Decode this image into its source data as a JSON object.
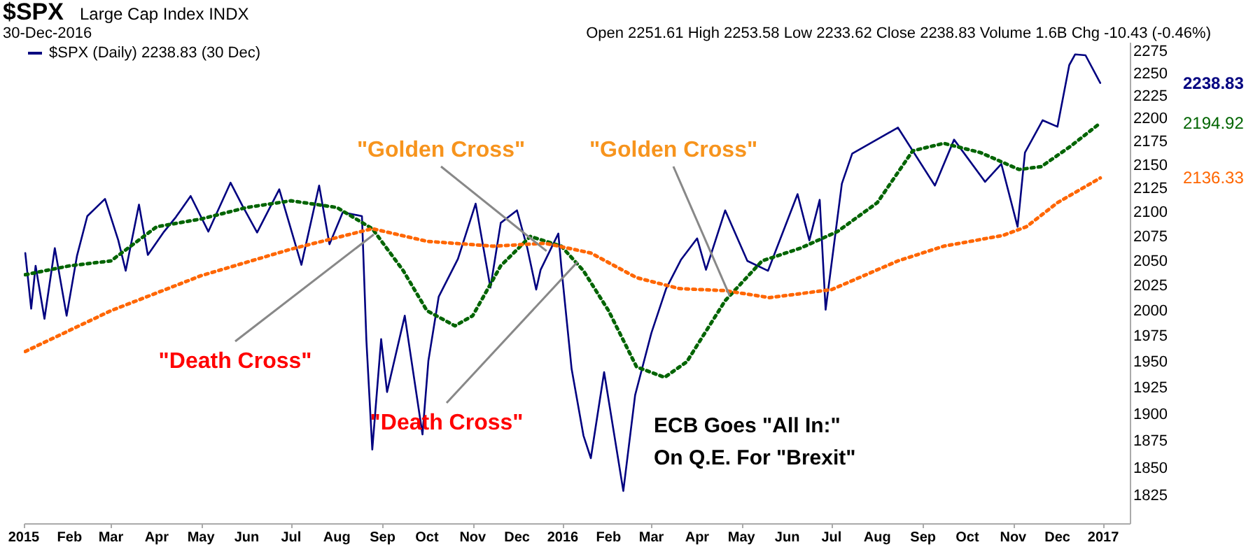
{
  "chart_data": {
    "type": "line",
    "title": "$SPX",
    "subtitle": "Large Cap Index INDX",
    "legend": "top left",
    "log": "y",
    "tick_labels": "xy",
    "xlim": [
      "2015-01-01",
      "2017-01-19"
    ],
    "ylim": [
      1800,
      2285
    ],
    "yticks": [
      1825,
      1850,
      1875,
      1900,
      1925,
      1950,
      1975,
      2000,
      2025,
      2050,
      2075,
      2100,
      2125,
      2150,
      2175,
      2200,
      2225,
      2250,
      2275
    ],
    "xticks": [
      {
        "value": "2015-01-01",
        "label": "2015"
      },
      {
        "value": "2015-02-01",
        "label": "Feb"
      },
      {
        "value": "2015-03-01",
        "label": "Mar"
      },
      {
        "value": "2015-04-01",
        "label": "Apr"
      },
      {
        "value": "2015-05-01",
        "label": "May"
      },
      {
        "value": "2015-06-01",
        "label": "Jun"
      },
      {
        "value": "2015-07-01",
        "label": "Jul"
      },
      {
        "value": "2015-08-01",
        "label": "Aug"
      },
      {
        "value": "2015-09-01",
        "label": "Sep"
      },
      {
        "value": "2015-10-01",
        "label": "Oct"
      },
      {
        "value": "2015-11-01",
        "label": "Nov"
      },
      {
        "value": "2015-12-01",
        "label": "Dec"
      },
      {
        "value": "2016-01-01",
        "label": "2016"
      },
      {
        "value": "2016-02-01",
        "label": "Feb"
      },
      {
        "value": "2016-03-01",
        "label": "Mar"
      },
      {
        "value": "2016-04-01",
        "label": "Apr"
      },
      {
        "value": "2016-05-01",
        "label": "May"
      },
      {
        "value": "2016-06-01",
        "label": "Jun"
      },
      {
        "value": "2016-07-01",
        "label": "Jul"
      },
      {
        "value": "2016-08-01",
        "label": "Aug"
      },
      {
        "value": "2016-09-01",
        "label": "Sep"
      },
      {
        "value": "2016-10-01",
        "label": "Oct"
      },
      {
        "value": "2016-11-01",
        "label": "Nov"
      },
      {
        "value": "2016-12-01",
        "label": "Dec"
      },
      {
        "value": "2017-01-01",
        "label": "2017"
      }
    ],
    "series": [
      {
        "name": "$SPX (Daily) 2238.83 (30 Dec)",
        "color": "#000080",
        "line_style": "solid",
        "x": [
          "2015-01-02",
          "2015-01-06",
          "2015-01-09",
          "2015-01-15",
          "2015-01-22",
          "2015-01-30",
          "2015-02-06",
          "2015-02-13",
          "2015-02-25",
          "2015-03-06",
          "2015-03-11",
          "2015-03-20",
          "2015-03-26",
          "2015-04-06",
          "2015-04-14",
          "2015-04-24",
          "2015-05-06",
          "2015-05-21",
          "2015-05-29",
          "2015-06-08",
          "2015-06-23",
          "2015-07-08",
          "2015-07-20",
          "2015-07-27",
          "2015-08-05",
          "2015-08-18",
          "2015-08-21",
          "2015-08-25",
          "2015-08-31",
          "2015-09-04",
          "2015-09-16",
          "2015-09-28",
          "2015-10-02",
          "2015-10-09",
          "2015-10-22",
          "2015-11-03",
          "2015-11-13",
          "2015-11-20",
          "2015-12-01",
          "2015-12-08",
          "2015-12-14",
          "2015-12-17",
          "2015-12-29",
          "2015-12-31",
          "2016-01-07",
          "2016-01-15",
          "2016-01-20",
          "2016-01-29",
          "2016-02-11",
          "2016-02-19",
          "2016-03-01",
          "2016-03-11",
          "2016-03-21",
          "2016-04-01",
          "2016-04-07",
          "2016-04-20",
          "2016-05-05",
          "2016-05-19",
          "2016-06-08",
          "2016-06-16",
          "2016-06-23",
          "2016-06-27",
          "2016-07-08",
          "2016-07-15",
          "2016-08-15",
          "2016-09-09",
          "2016-09-22",
          "2016-10-13",
          "2016-10-24",
          "2016-11-04",
          "2016-11-09",
          "2016-11-21",
          "2016-12-01",
          "2016-12-09",
          "2016-12-13",
          "2016-12-20",
          "2016-12-30"
        ],
        "values": [
          2058,
          2002,
          2045,
          1992,
          2063,
          1995,
          2055,
          2096,
          2114,
          2071,
          2040,
          2108,
          2056,
          2080,
          2095,
          2117,
          2080,
          2131,
          2107,
          2079,
          2124,
          2046,
          2128,
          2067,
          2100,
          2096,
          1971,
          1867,
          1972,
          1921,
          1995,
          1881,
          1951,
          2014,
          2052,
          2109,
          2023,
          2089,
          2102,
          2063,
          2021,
          2041,
          2078,
          2044,
          1943,
          1880,
          1859,
          1940,
          1829,
          1918,
          1978,
          2022,
          2051,
          2073,
          2041,
          2102,
          2050,
          2040,
          2119,
          2071,
          2113,
          2001,
          2130,
          2162,
          2190,
          2128,
          2177,
          2132,
          2151,
          2085,
          2163,
          2198,
          2191,
          2259,
          2271,
          2270,
          2239
        ]
      },
      {
        "color": "#006400",
        "line_style": "dotted",
        "x": [
          "2015-01-02",
          "2015-02-01",
          "2015-03-01",
          "2015-04-01",
          "2015-05-01",
          "2015-06-01",
          "2015-07-01",
          "2015-08-01",
          "2015-08-25",
          "2015-09-15",
          "2015-10-01",
          "2015-10-20",
          "2015-11-01",
          "2015-11-20",
          "2015-12-10",
          "2015-12-31",
          "2016-01-15",
          "2016-02-01",
          "2016-02-20",
          "2016-03-10",
          "2016-03-25",
          "2016-04-20",
          "2016-05-15",
          "2016-06-10",
          "2016-07-05",
          "2016-08-01",
          "2016-08-25",
          "2016-09-15",
          "2016-10-10",
          "2016-11-05",
          "2016-11-20",
          "2016-12-10",
          "2016-12-30"
        ],
        "values": [
          2036,
          2045,
          2050,
          2085,
          2093,
          2105,
          2112,
          2105,
          2083,
          2040,
          2000,
          1985,
          1995,
          2045,
          2075,
          2065,
          2040,
          2000,
          1945,
          1935,
          1950,
          2010,
          2050,
          2063,
          2080,
          2110,
          2165,
          2173,
          2163,
          2145,
          2148,
          2170,
          2195
        ]
      },
      {
        "color": "#ff6600",
        "line_style": "dotted",
        "x": [
          "2015-01-02",
          "2015-03-01",
          "2015-05-01",
          "2015-07-01",
          "2015-08-25",
          "2015-10-01",
          "2015-11-15",
          "2015-12-20",
          "2016-01-20",
          "2016-02-20",
          "2016-03-20",
          "2016-04-20",
          "2016-05-20",
          "2016-07-01",
          "2016-08-15",
          "2016-09-15",
          "2016-10-25",
          "2016-11-10",
          "2016-12-01",
          "2016-12-30"
        ],
        "values": [
          1960,
          2000,
          2035,
          2062,
          2083,
          2070,
          2065,
          2068,
          2058,
          2033,
          2022,
          2020,
          2013,
          2021,
          2050,
          2065,
          2076,
          2085,
          2110,
          2136
        ]
      }
    ],
    "annotations": [
      "30-Dec-2016",
      "Open 2251.61 High 2253.58 Low 2233.62 Close 2238.83 Volume 1.6B Chg -10.43 (-0.46%)",
      {
        "text": "\"Death Cross\"",
        "x": "2015-08-26",
        "y": 2077
      },
      {
        "text": "\"Golden Cross\"",
        "x": "2015-12-21",
        "y": 2060
      },
      {
        "text": "\"Death Cross\"",
        "x": "2016-01-11",
        "y": 2049
      },
      {
        "text": "\"Golden Cross\"",
        "x": "2016-04-23",
        "y": 2015
      },
      "ECB Goes \"All In:\"\nOn Q.E. For \"Brexit\"",
      "2238.83",
      "2194.92",
      "2136.33"
    ]
  }
}
